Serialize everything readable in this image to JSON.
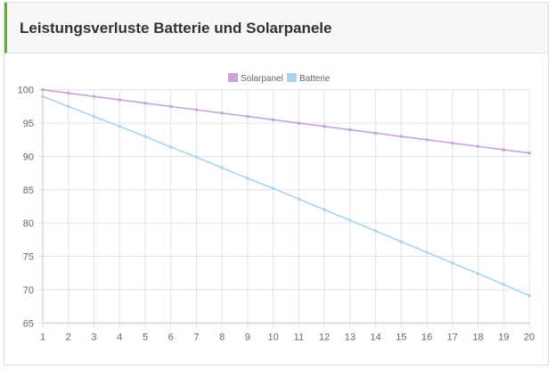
{
  "header": {
    "title": "Leistungsverluste Batterie und Solarpanele"
  },
  "chart_data": {
    "type": "line",
    "title": "",
    "xlabel": "",
    "ylabel": "",
    "x": [
      1,
      2,
      3,
      4,
      5,
      6,
      7,
      8,
      9,
      10,
      11,
      12,
      13,
      14,
      15,
      16,
      17,
      18,
      19,
      20
    ],
    "ylim": [
      65,
      100
    ],
    "yticks": [
      100,
      95,
      90,
      85,
      80,
      75,
      70,
      65
    ],
    "grid": true,
    "legend": "top",
    "series": [
      {
        "name": "Solarpanel",
        "color": "#c9a3d6",
        "values": [
          100,
          99.5,
          99,
          98.5,
          98,
          97.5,
          97,
          96.5,
          96,
          95.5,
          95,
          94.5,
          94,
          93.5,
          93,
          92.5,
          92,
          91.5,
          91,
          90.5
        ]
      },
      {
        "name": "Batterie",
        "color": "#a8d4ee",
        "values": [
          99,
          97.5,
          96,
          94.5,
          93,
          91.4,
          89.9,
          88.3,
          86.7,
          85.2,
          83.6,
          82,
          80.4,
          78.8,
          77.2,
          75.6,
          74,
          72.4,
          70.8,
          69.1
        ]
      }
    ]
  }
}
